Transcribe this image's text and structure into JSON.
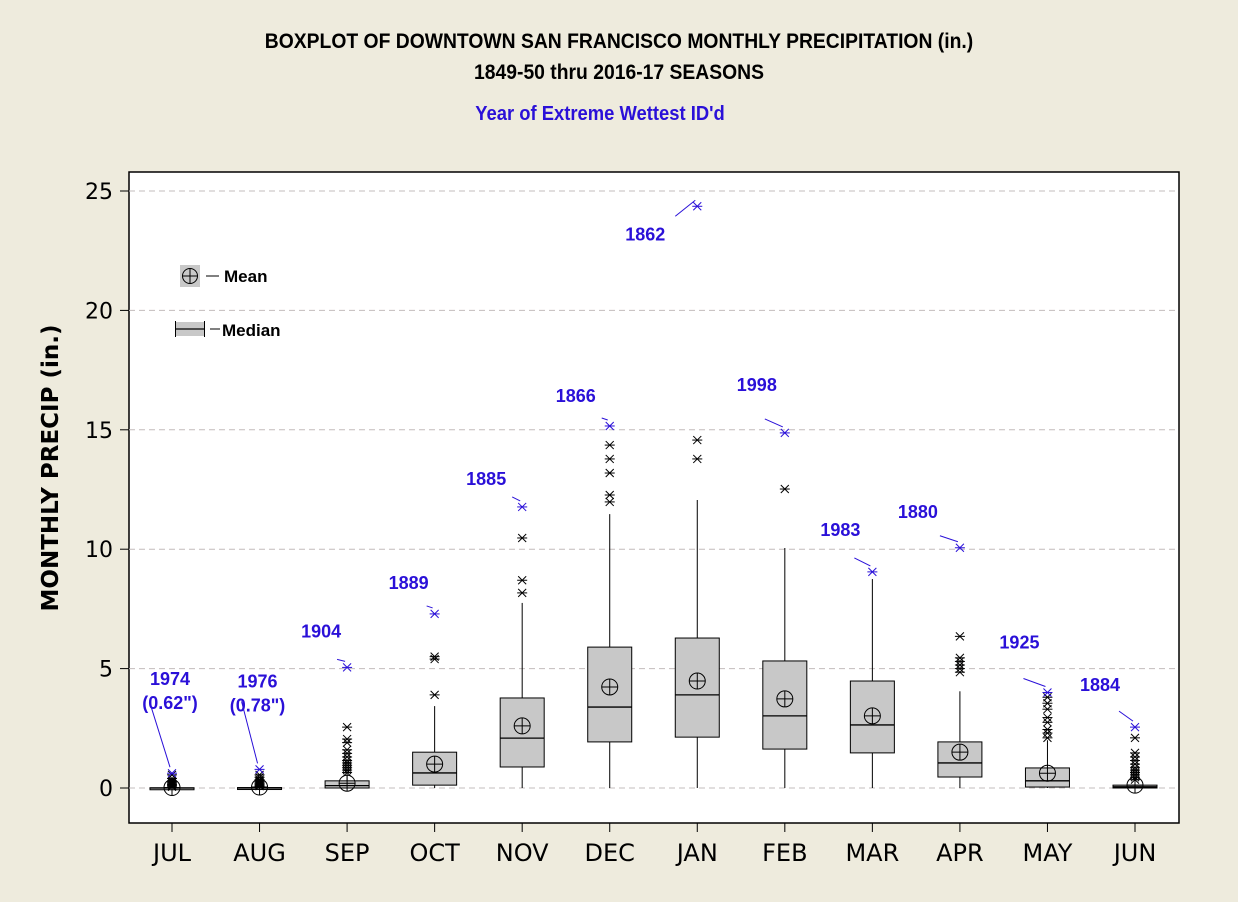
{
  "chart_data": {
    "type": "boxplot",
    "title": "BOXPLOT OF DOWNTOWN SAN FRANCISCO MONTHLY PRECIPITATION (in.)",
    "subtitle": "1849-50 thru 2016-17 SEASONS",
    "annotation_title": "Year of Extreme Wettest ID'd",
    "xlabel": "",
    "ylabel": "MONTHLY PRECIP (in.)",
    "ylim": [
      -1.5,
      25.8
    ],
    "yticks": [
      0,
      5,
      10,
      15,
      20,
      25
    ],
    "grid": true,
    "legend_position": "top-left",
    "legend": [
      {
        "symbol": "mean",
        "label": "Mean"
      },
      {
        "symbol": "median",
        "label": "Median"
      }
    ],
    "categories": [
      "JUL",
      "AUG",
      "SEP",
      "OCT",
      "NOV",
      "DEC",
      "JAN",
      "FEB",
      "MAR",
      "APR",
      "MAY",
      "JUN"
    ],
    "boxes": [
      {
        "month": "JUL",
        "q1": 0.0,
        "median": 0.0,
        "q3": 0.01,
        "whisker_low": 0.0,
        "whisker_high": 0.02,
        "mean": 0.02,
        "outliers": [
          0.05,
          0.1,
          0.15,
          0.2,
          0.25,
          0.3,
          0.4,
          0.55
        ],
        "extreme": {
          "value": 0.62,
          "year": "1974",
          "note": "(0.62\")"
        }
      },
      {
        "month": "AUG",
        "q1": 0.0,
        "median": 0.0,
        "q3": 0.02,
        "whisker_low": 0.0,
        "whisker_high": 0.05,
        "mean": 0.04,
        "outliers": [
          0.08,
          0.12,
          0.16,
          0.2,
          0.25,
          0.3,
          0.35,
          0.45,
          0.55
        ],
        "extreme": {
          "value": 0.78,
          "year": "1976",
          "note": "(0.78\")"
        }
      },
      {
        "month": "SEP",
        "q1": 0.0,
        "median": 0.1,
        "q3": 0.3,
        "whisker_low": 0.0,
        "whisker_high": 0.6,
        "mean": 0.2,
        "outliers": [
          0.65,
          0.75,
          0.85,
          0.95,
          1.05,
          1.15,
          1.3,
          1.45,
          1.6,
          1.9,
          2.05,
          2.55
        ],
        "extreme": {
          "value": 5.05,
          "year": "1904",
          "note": ""
        }
      },
      {
        "month": "OCT",
        "q1": 0.12,
        "median": 0.63,
        "q3": 1.5,
        "whisker_low": 0.0,
        "whisker_high": 3.43,
        "mean": 1.0,
        "outliers": [
          3.9,
          5.4,
          5.5
        ],
        "extreme": {
          "value": 7.29,
          "year": "1889",
          "note": ""
        }
      },
      {
        "month": "NOV",
        "q1": 0.88,
        "median": 2.09,
        "q3": 3.77,
        "whisker_low": 0.0,
        "whisker_high": 7.75,
        "mean": 2.6,
        "outliers": [
          8.17,
          8.7,
          10.47
        ],
        "extreme": {
          "value": 11.77,
          "year": "1885",
          "note": ""
        }
      },
      {
        "month": "DEC",
        "q1": 1.93,
        "median": 3.39,
        "q3": 5.9,
        "whisker_low": 0.0,
        "whisker_high": 11.47,
        "mean": 4.23,
        "outliers": [
          11.98,
          12.27,
          13.19,
          13.78,
          14.36
        ],
        "extreme": {
          "value": 15.16,
          "year": "1866",
          "note": ""
        }
      },
      {
        "month": "JAN",
        "q1": 2.13,
        "median": 3.9,
        "q3": 6.28,
        "whisker_low": 0.0,
        "whisker_high": 12.06,
        "mean": 4.48,
        "outliers": [
          13.78,
          14.57
        ],
        "extreme": {
          "value": 24.36,
          "year": "1862",
          "note": ""
        }
      },
      {
        "month": "FEB",
        "q1": 1.63,
        "median": 3.02,
        "q3": 5.32,
        "whisker_low": 0.0,
        "whisker_high": 10.05,
        "mean": 3.73,
        "outliers": [
          12.52
        ],
        "extreme": {
          "value": 14.87,
          "year": "1998",
          "note": ""
        }
      },
      {
        "month": "MAR",
        "q1": 1.47,
        "median": 2.64,
        "q3": 4.48,
        "whisker_low": 0.0,
        "whisker_high": 8.75,
        "mean": 3.02,
        "outliers": [],
        "extreme": {
          "value": 9.05,
          "year": "1983",
          "note": ""
        }
      },
      {
        "month": "APR",
        "q1": 0.46,
        "median": 1.05,
        "q3": 1.93,
        "whisker_low": 0.0,
        "whisker_high": 4.05,
        "mean": 1.5,
        "outliers": [
          4.85,
          5.0,
          5.15,
          5.3,
          5.45,
          6.35
        ],
        "extreme": {
          "value": 10.06,
          "year": "1880",
          "note": ""
        }
      },
      {
        "month": "MAY",
        "q1": 0.04,
        "median": 0.3,
        "q3": 0.84,
        "whisker_low": 0.0,
        "whisker_high": 2.0,
        "mean": 0.62,
        "outliers": [
          2.1,
          2.3,
          2.45,
          2.75,
          2.95,
          3.3,
          3.55,
          3.8
        ],
        "extreme": {
          "value": 4.0,
          "year": "1925",
          "note": ""
        }
      },
      {
        "month": "JUN",
        "q1": 0.0,
        "median": 0.05,
        "q3": 0.12,
        "whisker_low": 0.0,
        "whisker_high": 0.3,
        "mean": 0.12,
        "outliers": [
          0.35,
          0.45,
          0.55,
          0.65,
          0.75,
          0.85,
          1.0,
          1.15,
          1.3,
          1.47,
          2.1
        ],
        "extreme": {
          "value": 2.55,
          "year": "1884",
          "note": ""
        }
      }
    ],
    "colors": {
      "box_fill": "#c8c8c8",
      "annotation": "#2a10d8",
      "grid": "#c3bcbc",
      "plot_bg": "#ffffff",
      "page_bg": "#eeebdd"
    }
  }
}
